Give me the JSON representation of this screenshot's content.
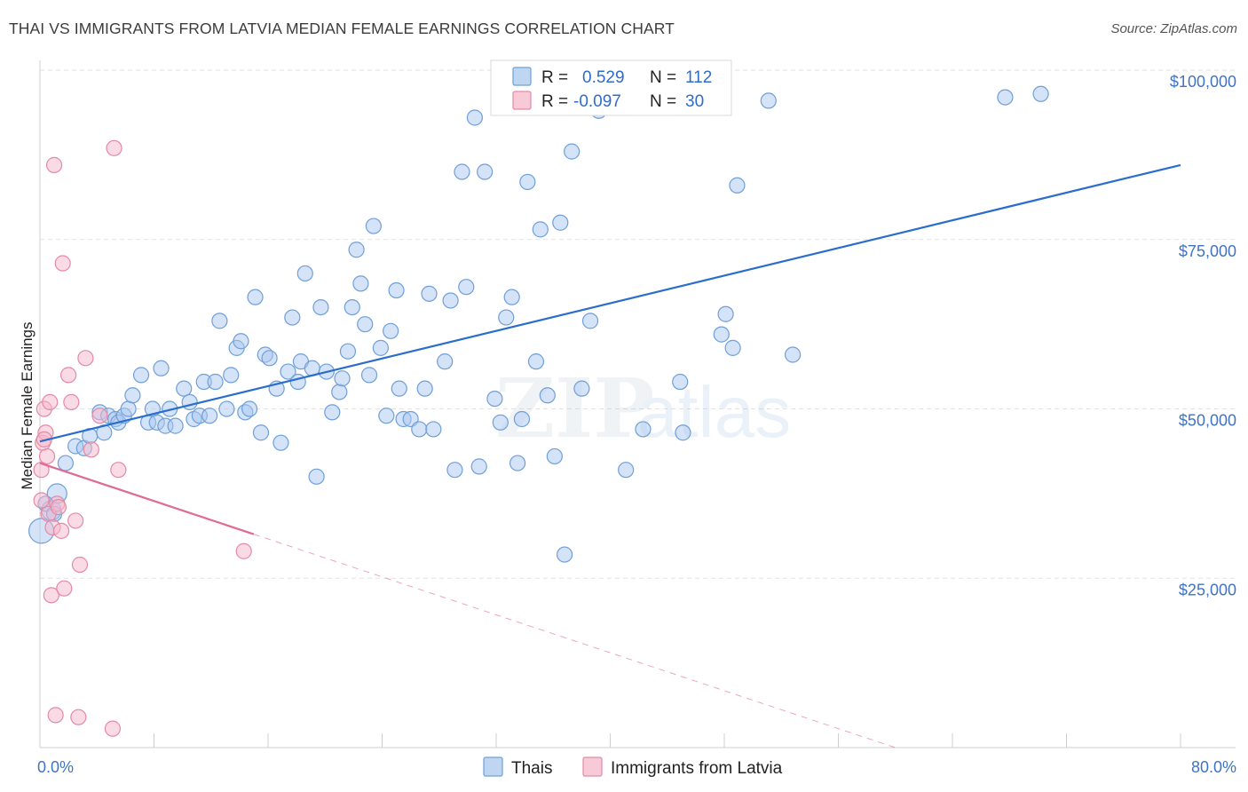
{
  "header": {
    "title": "THAI VS IMMIGRANTS FROM LATVIA MEDIAN FEMALE EARNINGS CORRELATION CHART",
    "source": "Source: ZipAtlas.com"
  },
  "watermark": {
    "zip": "ZIP",
    "atlas": "atlas"
  },
  "stats_box": {
    "rows": [
      {
        "r_label": "R =",
        "r_value": "0.529",
        "n_label": "N =",
        "n_value": "112",
        "color": "#a9c8ef"
      },
      {
        "r_label": "R =",
        "r_value": "-0.097",
        "n_label": "N =",
        "n_value": "30",
        "color": "#f5b8cb"
      }
    ]
  },
  "chart_data": {
    "type": "scatter",
    "title": "THAI VS IMMIGRANTS FROM LATVIA MEDIAN FEMALE EARNINGS CORRELATION CHART",
    "xlabel": "",
    "ylabel": "Median Female Earnings",
    "xlim": [
      0,
      80
    ],
    "ylim": [
      0,
      105000
    ],
    "x_tick_labels": [
      "0.0%",
      "80.0%"
    ],
    "y_ticks": [
      25000,
      50000,
      75000,
      100000
    ],
    "y_tick_labels": [
      "$25,000",
      "$50,000",
      "$75,000",
      "$100,000"
    ],
    "grid": true,
    "legend_position": "bottom-center",
    "series": [
      {
        "name": "Thais",
        "color": "#a9c8ef",
        "stroke": "#6f9fd8",
        "trend": {
          "x": [
            0,
            80
          ],
          "y": [
            45200,
            86000
          ],
          "color": "#2a6dcc"
        },
        "points": [
          [
            0.1,
            32000
          ],
          [
            0.8,
            35000
          ],
          [
            1.2,
            37500
          ],
          [
            1.8,
            42000
          ],
          [
            2.5,
            44500
          ],
          [
            3.1,
            44200
          ],
          [
            3.5,
            46000
          ],
          [
            4.2,
            49500
          ],
          [
            4.5,
            46500
          ],
          [
            4.8,
            49000
          ],
          [
            5.3,
            48500
          ],
          [
            5.5,
            48000
          ],
          [
            5.9,
            49000
          ],
          [
            6.2,
            50000
          ],
          [
            6.5,
            52000
          ],
          [
            7.1,
            55000
          ],
          [
            7.6,
            48000
          ],
          [
            7.9,
            50000
          ],
          [
            8.2,
            48000
          ],
          [
            8.5,
            56000
          ],
          [
            8.8,
            47500
          ],
          [
            9.1,
            50000
          ],
          [
            9.5,
            47500
          ],
          [
            10.1,
            53000
          ],
          [
            10.5,
            51000
          ],
          [
            10.8,
            48500
          ],
          [
            11.2,
            49000
          ],
          [
            11.5,
            54000
          ],
          [
            11.9,
            49000
          ],
          [
            12.3,
            54000
          ],
          [
            12.6,
            63000
          ],
          [
            13.1,
            50000
          ],
          [
            13.4,
            55000
          ],
          [
            13.8,
            59000
          ],
          [
            14.1,
            60000
          ],
          [
            14.4,
            49500
          ],
          [
            14.7,
            50000
          ],
          [
            15.1,
            66500
          ],
          [
            15.5,
            46500
          ],
          [
            15.8,
            58000
          ],
          [
            16.1,
            57500
          ],
          [
            16.6,
            53000
          ],
          [
            16.9,
            45000
          ],
          [
            17.4,
            55500
          ],
          [
            17.7,
            63500
          ],
          [
            18.1,
            54000
          ],
          [
            18.3,
            57000
          ],
          [
            18.6,
            70000
          ],
          [
            19.1,
            56000
          ],
          [
            19.4,
            40000
          ],
          [
            19.7,
            65000
          ],
          [
            20.1,
            55500
          ],
          [
            20.5,
            49500
          ],
          [
            21.0,
            52500
          ],
          [
            21.2,
            54500
          ],
          [
            21.6,
            58500
          ],
          [
            21.9,
            65000
          ],
          [
            22.2,
            73500
          ],
          [
            22.5,
            68500
          ],
          [
            22.8,
            62500
          ],
          [
            23.1,
            55000
          ],
          [
            23.4,
            77000
          ],
          [
            23.9,
            59000
          ],
          [
            24.3,
            49000
          ],
          [
            24.6,
            61500
          ],
          [
            25.0,
            67500
          ],
          [
            25.2,
            53000
          ],
          [
            25.5,
            48500
          ],
          [
            26.0,
            48500
          ],
          [
            26.6,
            47000
          ],
          [
            27.0,
            53000
          ],
          [
            27.3,
            67000
          ],
          [
            27.6,
            47000
          ],
          [
            28.4,
            57000
          ],
          [
            28.8,
            66000
          ],
          [
            29.1,
            41000
          ],
          [
            29.6,
            85000
          ],
          [
            29.9,
            68000
          ],
          [
            30.5,
            93000
          ],
          [
            30.8,
            41500
          ],
          [
            31.2,
            85000
          ],
          [
            31.9,
            51500
          ],
          [
            32.3,
            48000
          ],
          [
            32.7,
            63500
          ],
          [
            33.1,
            66500
          ],
          [
            33.5,
            42000
          ],
          [
            33.8,
            48500
          ],
          [
            34.2,
            83500
          ],
          [
            34.8,
            57000
          ],
          [
            35.1,
            76500
          ],
          [
            35.6,
            52000
          ],
          [
            36.1,
            43000
          ],
          [
            36.5,
            77500
          ],
          [
            36.8,
            28500
          ],
          [
            37.3,
            88000
          ],
          [
            38.0,
            53000
          ],
          [
            38.6,
            63000
          ],
          [
            39.2,
            94000
          ],
          [
            41.1,
            41000
          ],
          [
            42.3,
            47000
          ],
          [
            44.9,
            54000
          ],
          [
            45.1,
            46500
          ],
          [
            47.8,
            61000
          ],
          [
            48.1,
            64000
          ],
          [
            48.6,
            59000
          ],
          [
            48.9,
            83000
          ],
          [
            51.1,
            95500
          ],
          [
            52.8,
            58000
          ],
          [
            67.7,
            96000
          ],
          [
            70.2,
            96500
          ],
          [
            0.4,
            36000
          ],
          [
            1.0,
            34500
          ]
        ]
      },
      {
        "name": "Immigrants from Latvia",
        "color": "#f5b8cb",
        "stroke": "#e38aa6",
        "trend": {
          "x": [
            0,
            15
          ],
          "y": [
            42000,
            31500
          ],
          "color": "#e06a94",
          "dashed_to": [
            80,
            -14000
          ]
        },
        "points": [
          [
            0.1,
            41000
          ],
          [
            0.1,
            36500
          ],
          [
            0.2,
            45000
          ],
          [
            0.3,
            50000
          ],
          [
            0.4,
            46500
          ],
          [
            0.5,
            43000
          ],
          [
            0.6,
            34500
          ],
          [
            0.7,
            51000
          ],
          [
            0.8,
            22500
          ],
          [
            0.9,
            32500
          ],
          [
            1.0,
            86000
          ],
          [
            1.1,
            4800
          ],
          [
            1.2,
            36000
          ],
          [
            1.3,
            35500
          ],
          [
            1.5,
            32000
          ],
          [
            1.6,
            71500
          ],
          [
            1.7,
            23500
          ],
          [
            2.0,
            55000
          ],
          [
            2.2,
            51000
          ],
          [
            2.5,
            33500
          ],
          [
            2.7,
            4500
          ],
          [
            2.8,
            27000
          ],
          [
            3.2,
            57500
          ],
          [
            3.6,
            44000
          ],
          [
            4.2,
            49000
          ],
          [
            5.1,
            2800
          ],
          [
            5.5,
            41000
          ],
          [
            5.2,
            88500
          ],
          [
            14.3,
            29000
          ],
          [
            0.3,
            45500
          ]
        ]
      }
    ]
  }
}
